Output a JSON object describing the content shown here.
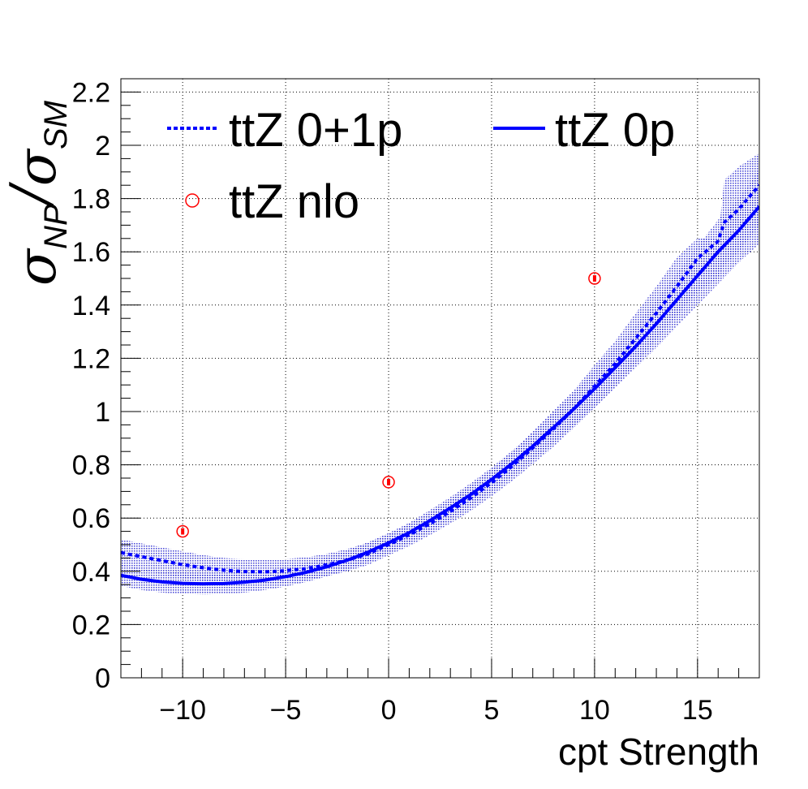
{
  "chart_data": {
    "type": "line",
    "xlabel": "cpt Strength",
    "ylabel": {
      "symbol_num": "σ",
      "sub_num": "NP",
      "slash": "/",
      "symbol_den": "σ",
      "sub_den": "SM"
    },
    "xlim": [
      -13,
      18
    ],
    "ylim": [
      0,
      2.25
    ],
    "x_ticks": [
      -10,
      -5,
      0,
      5,
      10,
      15
    ],
    "x_tick_labels": [
      "−10",
      "−5",
      "0",
      "5",
      "10",
      "15"
    ],
    "y_ticks": [
      0,
      0.2,
      0.4,
      0.6,
      0.8,
      1,
      1.2,
      1.4,
      1.6,
      1.8,
      2,
      2.2
    ],
    "y_tick_labels": [
      "0",
      "0.2",
      "0.4",
      "0.6",
      "0.8",
      "1",
      "1.2",
      "1.4",
      "1.6",
      "1.8",
      "2",
      "2.2"
    ],
    "grid": true,
    "legend_placement": "top-left",
    "colors": {
      "line": "#0000ff",
      "band": "#1a1acc",
      "nlo": "#ff0000"
    },
    "series": [
      {
        "name": "ttZ 0+1p",
        "style": "dotted",
        "x": [
          -13,
          -12,
          -11,
          -10,
          -9,
          -8,
          -7,
          -6,
          -5,
          -4,
          -3,
          -2,
          -1,
          0,
          1,
          2,
          3,
          4,
          5,
          6,
          7,
          8,
          9,
          10,
          11,
          12,
          13,
          14,
          15,
          16,
          16.3,
          17,
          18
        ],
        "y": [
          0.47,
          0.455,
          0.44,
          0.425,
          0.413,
          0.404,
          0.399,
          0.398,
          0.402,
          0.41,
          0.424,
          0.442,
          0.466,
          0.5,
          0.537,
          0.578,
          0.625,
          0.676,
          0.733,
          0.795,
          0.863,
          0.935,
          1.01,
          1.095,
          1.18,
          1.275,
          1.37,
          1.47,
          1.575,
          1.64,
          1.71,
          1.76,
          1.85
        ],
        "band_lo": [
          0.42,
          0.405,
          0.39,
          0.375,
          0.365,
          0.358,
          0.353,
          0.353,
          0.358,
          0.367,
          0.382,
          0.4,
          0.424,
          0.46,
          0.495,
          0.536,
          0.58,
          0.628,
          0.682,
          0.74,
          0.802,
          0.868,
          0.94,
          1.015,
          1.095,
          1.18,
          1.27,
          1.36,
          1.45,
          1.5,
          1.55,
          1.6,
          1.7
        ],
        "band_hi": [
          0.52,
          0.505,
          0.49,
          0.475,
          0.461,
          0.45,
          0.445,
          0.443,
          0.446,
          0.453,
          0.466,
          0.484,
          0.508,
          0.54,
          0.58,
          0.62,
          0.67,
          0.724,
          0.784,
          0.85,
          0.924,
          1.002,
          1.08,
          1.175,
          1.265,
          1.37,
          1.47,
          1.58,
          1.65,
          1.65,
          1.87,
          1.92,
          1.97
        ]
      },
      {
        "name": "ttZ 0p",
        "style": "solid",
        "x": [
          -13,
          -12,
          -11,
          -10,
          -9,
          -8,
          -7,
          -6,
          -5,
          -4,
          -3,
          -2,
          -1,
          0,
          1,
          2,
          3,
          4,
          5,
          6,
          7,
          8,
          9,
          10,
          11,
          12,
          13,
          14,
          15,
          16,
          17,
          18
        ],
        "y": [
          0.385,
          0.37,
          0.36,
          0.355,
          0.353,
          0.354,
          0.359,
          0.367,
          0.38,
          0.396,
          0.417,
          0.442,
          0.472,
          0.507,
          0.545,
          0.59,
          0.638,
          0.689,
          0.745,
          0.805,
          0.87,
          0.94,
          1.01,
          1.085,
          1.165,
          1.245,
          1.33,
          1.42,
          1.51,
          1.6,
          1.68,
          1.77
        ],
        "band_lo": [
          0.345,
          0.33,
          0.32,
          0.315,
          0.313,
          0.315,
          0.32,
          0.33,
          0.343,
          0.36,
          0.381,
          0.406,
          0.435,
          0.47,
          0.508,
          0.55,
          0.597,
          0.646,
          0.7,
          0.757,
          0.817,
          0.882,
          0.948,
          1.015,
          1.09,
          1.165,
          1.24,
          1.32,
          1.4,
          1.48,
          1.56,
          1.63
        ],
        "band_hi": [
          0.425,
          0.41,
          0.4,
          0.395,
          0.393,
          0.393,
          0.398,
          0.404,
          0.417,
          0.432,
          0.453,
          0.478,
          0.509,
          0.544,
          0.582,
          0.63,
          0.679,
          0.732,
          0.79,
          0.853,
          0.923,
          0.998,
          1.072,
          1.155,
          1.24,
          1.325,
          1.42,
          1.52,
          1.62,
          1.72,
          1.8,
          1.91
        ]
      },
      {
        "name": "ttZ nlo",
        "style": "markers",
        "x": [
          -10,
          0,
          10
        ],
        "y": [
          0.55,
          0.735,
          1.5
        ],
        "err": [
          0.012,
          0.012,
          0.012
        ]
      }
    ]
  }
}
